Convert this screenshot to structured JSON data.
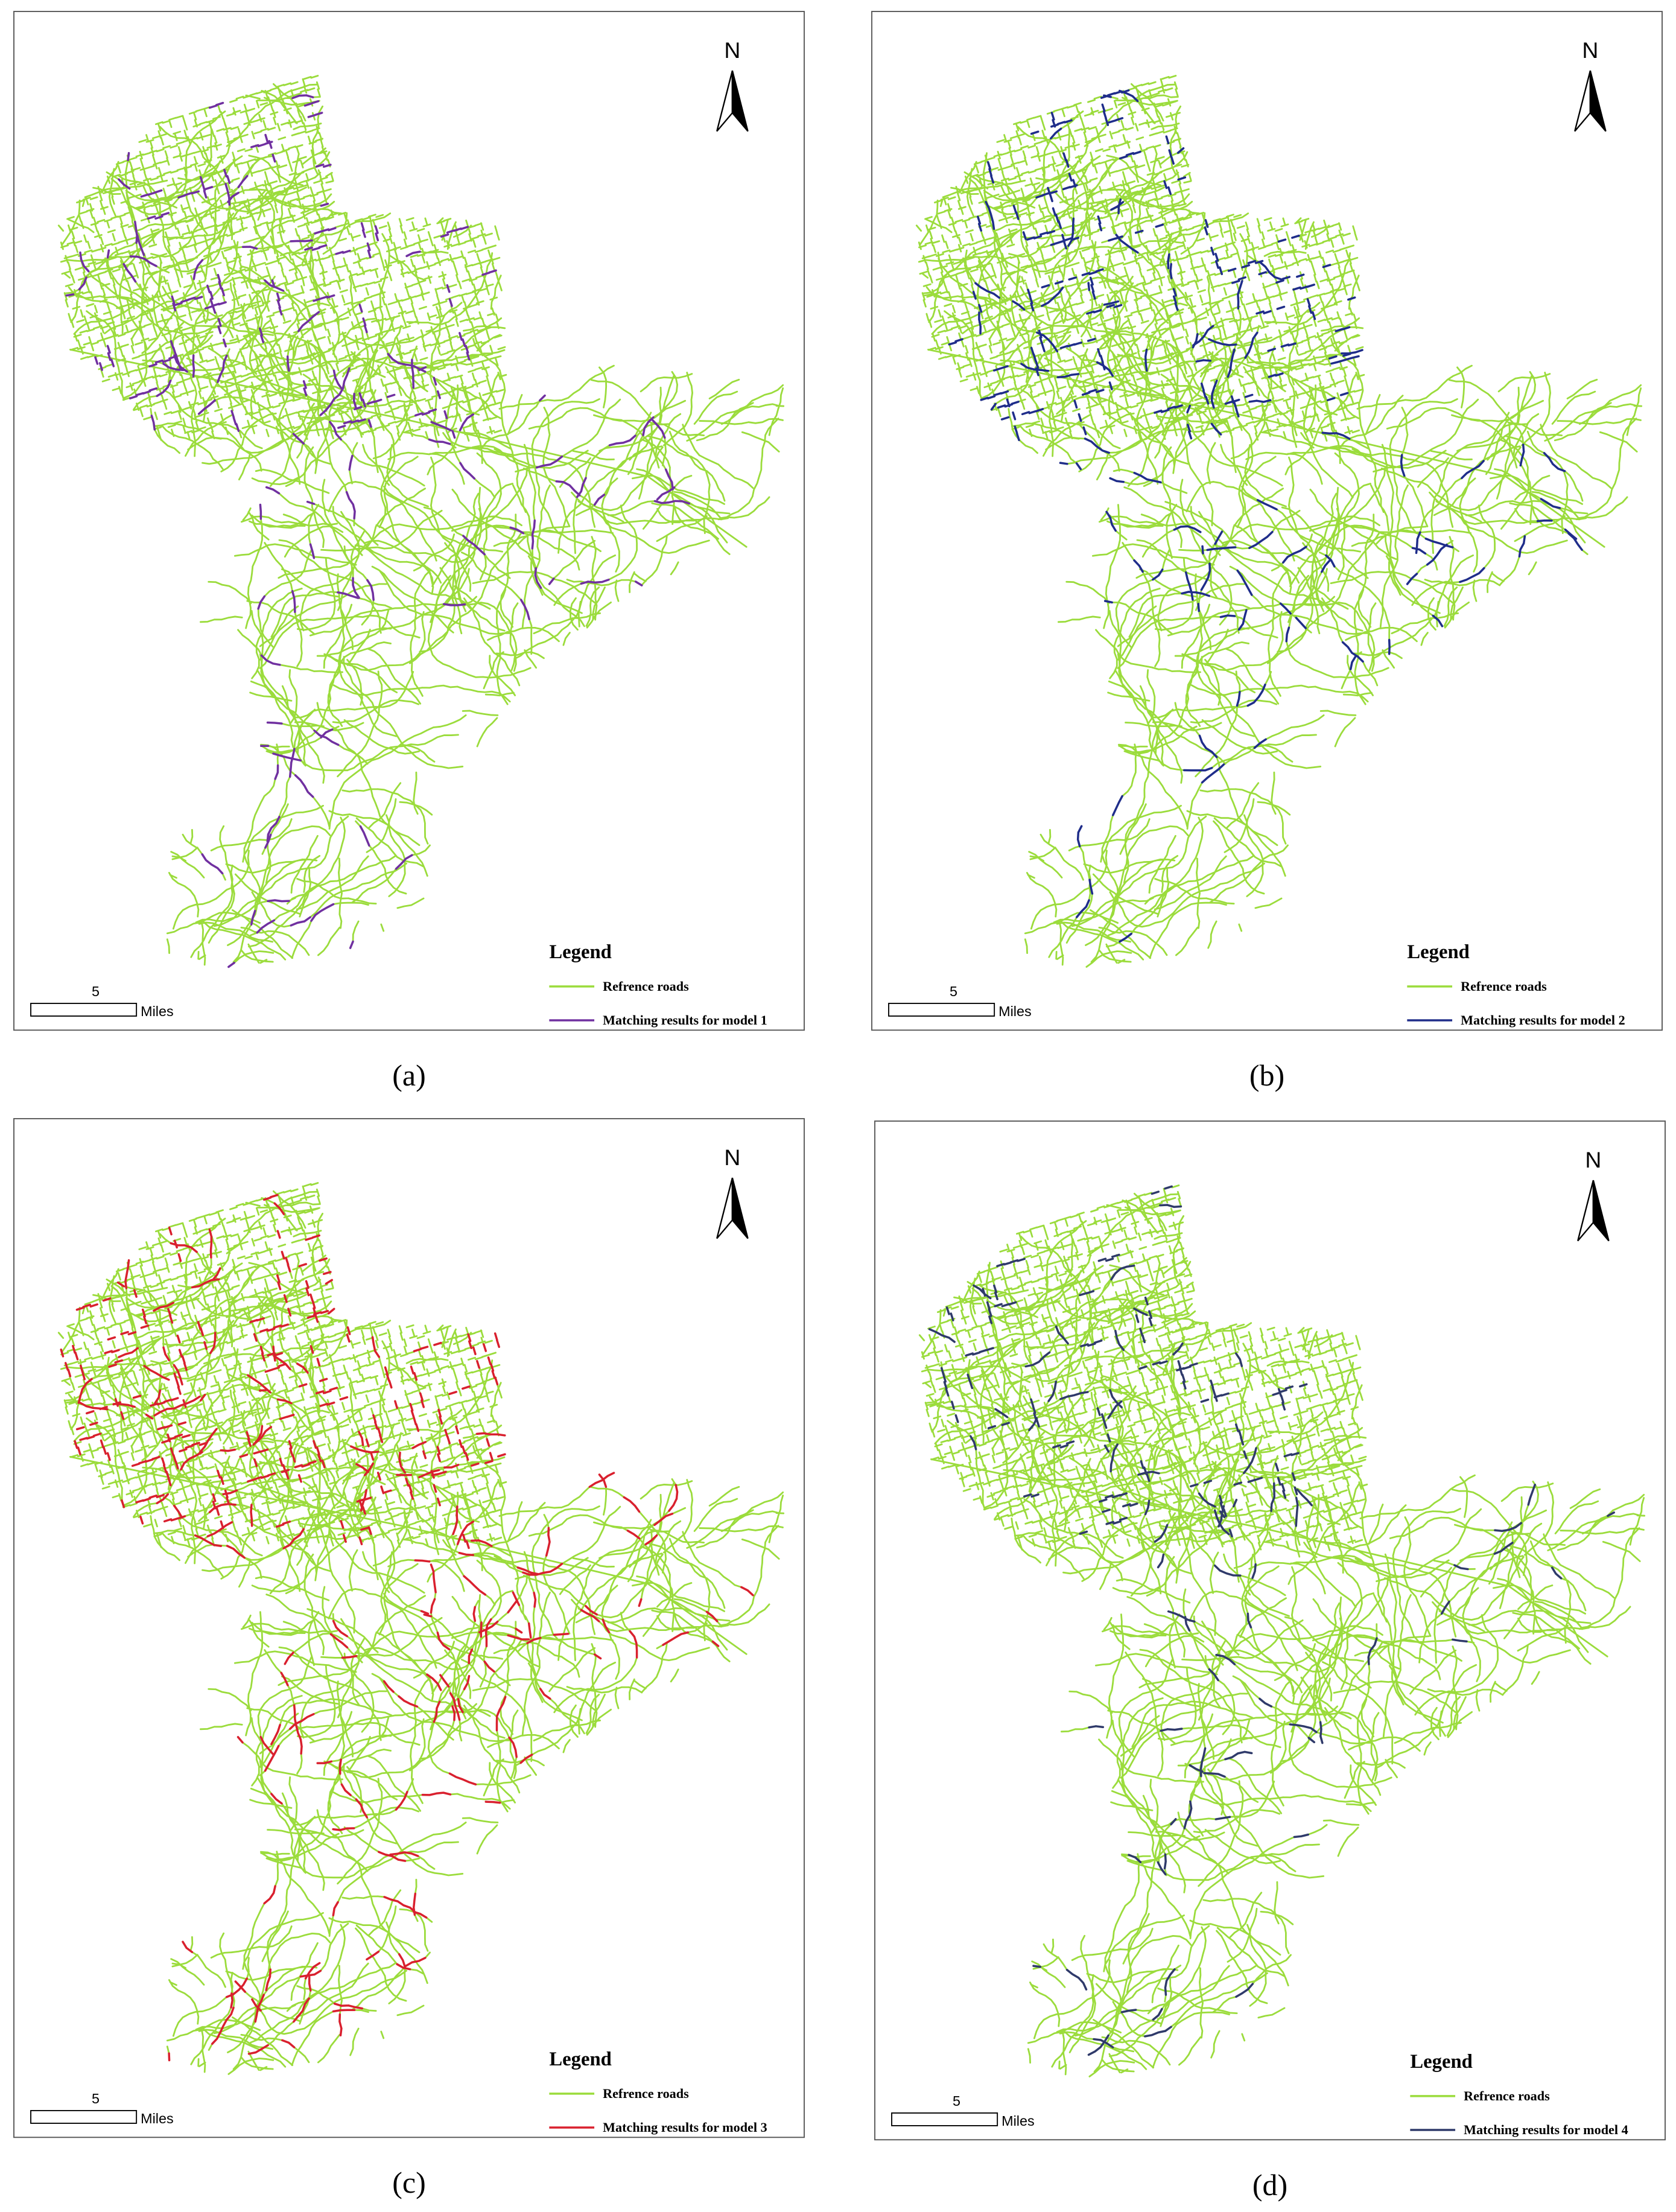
{
  "panels": [
    {
      "label": "(a)",
      "north": "N",
      "legend": {
        "title": "Legend",
        "items": [
          {
            "label": "Refrence roads",
            "color": "#9bdc3c"
          },
          {
            "label": "Matching results for model 1",
            "color": "#7030a0"
          }
        ]
      },
      "scale": {
        "value": 5,
        "unit": "Miles"
      }
    },
    {
      "label": "(b)",
      "north": "N",
      "legend": {
        "title": "Legend",
        "items": [
          {
            "label": "Refrence roads",
            "color": "#9bdc3c"
          },
          {
            "label": "Matching results for model 2",
            "color": "#1f2d8a"
          }
        ]
      },
      "scale": {
        "value": 5,
        "unit": "Miles"
      }
    },
    {
      "label": "(c)",
      "north": "N",
      "legend": {
        "title": "Legend",
        "items": [
          {
            "label": "Refrence roads",
            "color": "#9bdc3c"
          },
          {
            "label": "Matching results for model 3",
            "color": "#d9202e"
          }
        ]
      },
      "scale": {
        "value": 5,
        "unit": "Miles"
      }
    },
    {
      "label": "(d)",
      "north": "N",
      "legend": {
        "title": "Legend",
        "items": [
          {
            "label": "Refrence roads",
            "color": "#9bdc3c"
          },
          {
            "label": "Matching results for model 4",
            "color": "#2f3a6a"
          }
        ]
      },
      "scale": {
        "value": 5,
        "unit": "Miles"
      }
    }
  ]
}
